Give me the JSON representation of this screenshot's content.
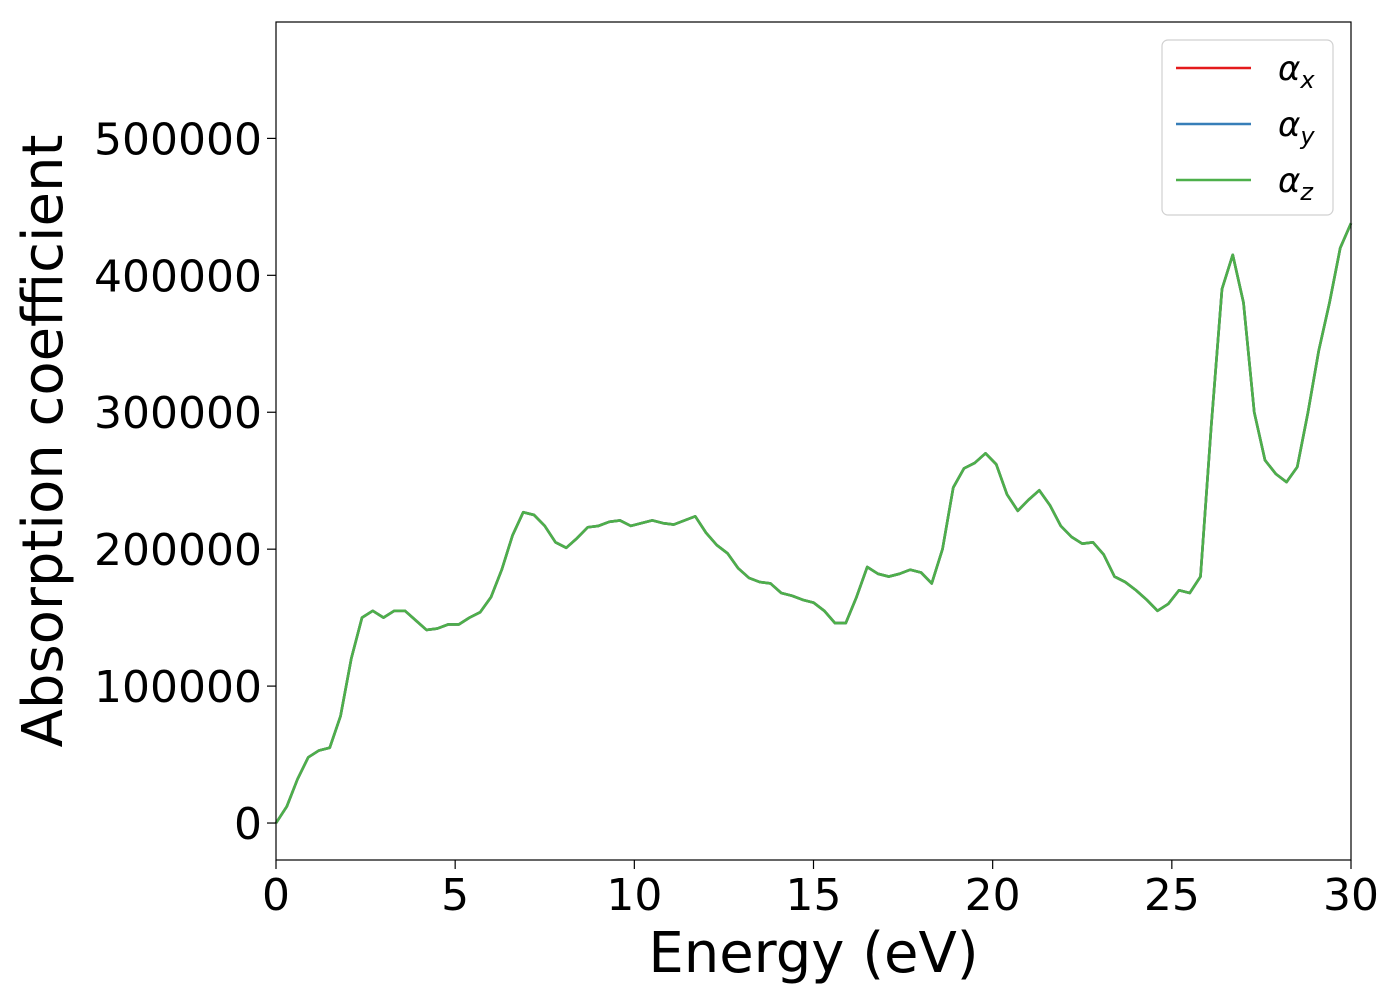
{
  "chart_data": {
    "type": "line",
    "title": "",
    "xlabel": "Energy (eV)",
    "ylabel": "Absorption coefficient",
    "xlim": [
      0,
      30
    ],
    "ylim": [
      -27000,
      585000
    ],
    "xticks": [
      "0",
      "5",
      "10",
      "15",
      "20",
      "25",
      "30"
    ],
    "yticks": [
      "0",
      "100000",
      "200000",
      "300000",
      "400000",
      "500000"
    ],
    "xtick_values": [
      0,
      5,
      10,
      15,
      20,
      25,
      30
    ],
    "ytick_values": [
      0,
      100000,
      200000,
      300000,
      400000,
      500000
    ],
    "grid": false,
    "legend_position": "top-right",
    "x": [
      0,
      0.3,
      0.6,
      0.9,
      1.2,
      1.5,
      1.8,
      2.1,
      2.4,
      2.7,
      3.0,
      3.3,
      3.6,
      3.9,
      4.2,
      4.5,
      4.8,
      5.1,
      5.4,
      5.7,
      6.0,
      6.3,
      6.6,
      6.9,
      7.2,
      7.5,
      7.8,
      8.1,
      8.4,
      8.7,
      9.0,
      9.3,
      9.6,
      9.9,
      10.2,
      10.5,
      10.8,
      11.1,
      11.4,
      11.7,
      12.0,
      12.3,
      12.6,
      12.9,
      13.2,
      13.5,
      13.8,
      14.1,
      14.4,
      14.7,
      15.0,
      15.3,
      15.6,
      15.9,
      16.2,
      16.5,
      16.8,
      17.1,
      17.4,
      17.7,
      18.0,
      18.3,
      18.6,
      18.9,
      19.2,
      19.5,
      19.8,
      20.1,
      20.4,
      20.7,
      21.0,
      21.3,
      21.6,
      21.9,
      22.2,
      22.5,
      22.8,
      23.1,
      23.4,
      23.7,
      24.0,
      24.3,
      24.6,
      24.9,
      25.2,
      25.5,
      25.8,
      26.1,
      26.4,
      26.7,
      27.0,
      27.3,
      27.6,
      27.9,
      28.2,
      28.5,
      28.8,
      29.1,
      29.4,
      29.7,
      30.0
    ],
    "series": [
      {
        "name": "αx",
        "color": "#e41a1c",
        "values": [
          0,
          12000,
          32000,
          48000,
          53000,
          55000,
          78000,
          120000,
          150000,
          155000,
          150000,
          155000,
          155000,
          148000,
          141000,
          142000,
          145000,
          145000,
          150000,
          154000,
          165000,
          185000,
          210000,
          227000,
          225000,
          217000,
          205000,
          201000,
          208000,
          216000,
          217000,
          220000,
          221000,
          217000,
          219000,
          221000,
          219000,
          218000,
          221000,
          224000,
          212000,
          203000,
          197000,
          186000,
          179000,
          176000,
          175000,
          168000,
          166000,
          163000,
          161000,
          155000,
          146000,
          146000,
          165000,
          187000,
          182000,
          180000,
          182000,
          185000,
          183000,
          175000,
          200000,
          245000,
          259000,
          263000,
          270000,
          262000,
          240000,
          228000,
          236000,
          243000,
          232000,
          217000,
          209000,
          204000,
          205000,
          196000,
          180000,
          176000,
          170000,
          163000,
          155000,
          160000,
          170000,
          168000,
          180000,
          290000,
          390000,
          415000,
          380000,
          300000,
          265000,
          255000,
          249000,
          260000,
          300000,
          345000,
          380000,
          420000,
          438000
        ]
      },
      {
        "name": "αy",
        "color": "#377eb8",
        "values": [
          0,
          12000,
          32000,
          48000,
          53000,
          55000,
          78000,
          120000,
          150000,
          155000,
          150000,
          155000,
          155000,
          148000,
          141000,
          142000,
          145000,
          145000,
          150000,
          154000,
          165000,
          185000,
          210000,
          227000,
          225000,
          217000,
          205000,
          201000,
          208000,
          216000,
          217000,
          220000,
          221000,
          217000,
          219000,
          221000,
          219000,
          218000,
          221000,
          224000,
          212000,
          203000,
          197000,
          186000,
          179000,
          176000,
          175000,
          168000,
          166000,
          163000,
          161000,
          155000,
          146000,
          146000,
          165000,
          187000,
          182000,
          180000,
          182000,
          185000,
          183000,
          175000,
          200000,
          245000,
          259000,
          263000,
          270000,
          262000,
          240000,
          228000,
          236000,
          243000,
          232000,
          217000,
          209000,
          204000,
          205000,
          196000,
          180000,
          176000,
          170000,
          163000,
          155000,
          160000,
          170000,
          168000,
          180000,
          290000,
          390000,
          415000,
          380000,
          300000,
          265000,
          255000,
          249000,
          260000,
          300000,
          345000,
          380000,
          420000,
          438000
        ]
      },
      {
        "name": "αz",
        "color": "#4daf4a",
        "values": [
          0,
          12000,
          32000,
          48000,
          53000,
          55000,
          78000,
          120000,
          150000,
          155000,
          150000,
          155000,
          155000,
          148000,
          141000,
          142000,
          145000,
          145000,
          150000,
          154000,
          165000,
          185000,
          210000,
          227000,
          225000,
          217000,
          205000,
          201000,
          208000,
          216000,
          217000,
          220000,
          221000,
          217000,
          219000,
          221000,
          219000,
          218000,
          221000,
          224000,
          212000,
          203000,
          197000,
          186000,
          179000,
          176000,
          175000,
          168000,
          166000,
          163000,
          161000,
          155000,
          146000,
          146000,
          165000,
          187000,
          182000,
          180000,
          182000,
          185000,
          183000,
          175000,
          200000,
          245000,
          259000,
          263000,
          270000,
          262000,
          240000,
          228000,
          236000,
          243000,
          232000,
          217000,
          209000,
          204000,
          205000,
          196000,
          180000,
          176000,
          170000,
          163000,
          155000,
          160000,
          170000,
          168000,
          180000,
          290000,
          390000,
          415000,
          380000,
          300000,
          265000,
          255000,
          249000,
          260000,
          300000,
          345000,
          380000,
          420000,
          438000
        ]
      }
    ],
    "legend": [
      {
        "symbol": "α",
        "subscript": "x",
        "color": "#e41a1c"
      },
      {
        "symbol": "α",
        "subscript": "y",
        "color": "#377eb8"
      },
      {
        "symbol": "α",
        "subscript": "z",
        "color": "#4daf4a"
      }
    ]
  }
}
